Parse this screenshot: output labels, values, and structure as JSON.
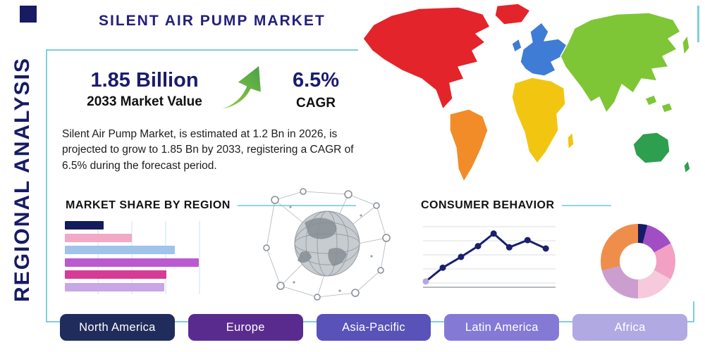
{
  "header": {
    "title": "SILENT AIR PUMP MARKET"
  },
  "sidebar": {
    "vertical_title": "REGIONAL ANALYSIS"
  },
  "stats": {
    "market_value": "1.85 Billion",
    "market_value_label": "2033 Market Value",
    "cagr_value": "6.5%",
    "cagr_label": "CAGR"
  },
  "description": "Silent Air Pump Market, is estimated at 1.2 Bn in 2026, is projected to grow to 1.85 Bn by 2033, registering a CAGR of 6.5% during the forecast period.",
  "sections": {
    "market_share_title": "MARKET SHARE BY REGION",
    "consumer_behavior_title": "CONSUMER BEHAVIOR"
  },
  "icons": {
    "growth_arrow": "growth-arrow-icon",
    "globe_network": "globe-network-graphic"
  },
  "accent_colors": {
    "frame": "#7ecfdd",
    "navy": "#1b1b6e",
    "title_purple": "#23207d",
    "arrow_green_light": "#a5cf3e",
    "arrow_green_dark": "#45a049"
  },
  "region_buttons": [
    {
      "label": "North America",
      "color": "#202c5c"
    },
    {
      "label": "Europe",
      "color": "#5a2b8f"
    },
    {
      "label": "Asia-Pacific",
      "color": "#5952b8"
    },
    {
      "label": "Latin America",
      "color": "#8579d6"
    },
    {
      "label": "Africa",
      "color": "#b0a9e2"
    }
  ],
  "map": {
    "colors": {
      "north-america": "#e3242b",
      "south-america": "#f28c28",
      "europe": "#3e7cd6",
      "africa": "#f2c511",
      "asia": "#7ec636",
      "australia": "#2e9e4f"
    }
  },
  "chart_data": [
    {
      "type": "bar",
      "title": "MARKET SHARE BY REGION",
      "orientation": "horizontal",
      "categories": [
        "",
        "",
        "",
        "",
        "",
        ""
      ],
      "values": [
        29,
        50,
        82,
        100,
        76,
        74
      ],
      "bar_colors": [
        "#141a5e",
        "#f2a9c6",
        "#9fc3ea",
        "#bb5ad0",
        "#d63b96",
        "#c9a6e6"
      ],
      "note": "bars are unlabeled in the image; values are relative lengths with the longest bar = 100",
      "grid": true
    },
    {
      "type": "line",
      "title": "CONSUMER BEHAVIOR",
      "x": [
        0,
        13,
        27,
        40,
        52,
        64,
        78,
        92
      ],
      "y": [
        5,
        28,
        46,
        64,
        85,
        62,
        74,
        60
      ],
      "note": "axes are unlabeled; y values are relative heights 0-100 estimated from the plot",
      "line_color": "#1b1f6e",
      "first_marker_color": "#b9a6e0",
      "grid": true,
      "legend": false
    },
    {
      "type": "pie",
      "donut": true,
      "title": "",
      "slices": [
        {
          "label": "navy-sliver",
          "value": 4,
          "color": "#171b63"
        },
        {
          "label": "violet",
          "value": 13,
          "color": "#a14ec4"
        },
        {
          "label": "pink",
          "value": 16,
          "color": "#f2a0c4"
        },
        {
          "label": "light-pink",
          "value": 17,
          "color": "#f6c9dc"
        },
        {
          "label": "plum",
          "value": 21,
          "color": "#cc9ed0"
        },
        {
          "label": "orange",
          "value": 29,
          "color": "#ef8e4b"
        }
      ],
      "note": "slices are unlabeled in the image; values are estimated percentages"
    }
  ]
}
